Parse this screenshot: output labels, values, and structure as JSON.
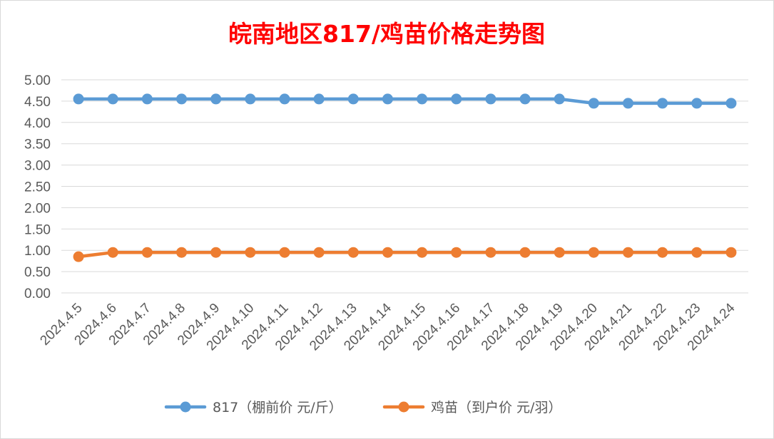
{
  "chart_data": {
    "type": "line",
    "title": "皖南地区817/鸡苗价格走势图",
    "title_color": "#ff0000",
    "xlabel": "",
    "ylabel": "",
    "categories": [
      "2024.4.5",
      "2024.4.6",
      "2024.4.7",
      "2024.4.8",
      "2024.4.9",
      "2024.4.10",
      "2024.4.11",
      "2024.4.12",
      "2024.4.13",
      "2024.4.14",
      "2024.4.15",
      "2024.4.16",
      "2024.4.17",
      "2024.4.18",
      "2024.4.19",
      "2024.4.20",
      "2024.4.21",
      "2024.4.22",
      "2024.4.23",
      "2024.4.24"
    ],
    "y_ticks": [
      "0.00",
      "0.50",
      "1.00",
      "1.50",
      "2.00",
      "2.50",
      "3.00",
      "3.50",
      "4.00",
      "4.50",
      "5.00"
    ],
    "ylim": [
      0,
      5
    ],
    "grid": true,
    "legend_position": "bottom",
    "series": [
      {
        "name": "817（棚前价 元/斤）",
        "color": "#5b9bd5",
        "values": [
          4.55,
          4.55,
          4.55,
          4.55,
          4.55,
          4.55,
          4.55,
          4.55,
          4.55,
          4.55,
          4.55,
          4.55,
          4.55,
          4.55,
          4.55,
          4.45,
          4.45,
          4.45,
          4.45,
          4.45
        ]
      },
      {
        "name": "鸡苗（到户价 元/羽）",
        "color": "#ed7d31",
        "values": [
          0.85,
          0.95,
          0.95,
          0.95,
          0.95,
          0.95,
          0.95,
          0.95,
          0.95,
          0.95,
          0.95,
          0.95,
          0.95,
          0.95,
          0.95,
          0.95,
          0.95,
          0.95,
          0.95,
          0.95
        ]
      }
    ]
  }
}
